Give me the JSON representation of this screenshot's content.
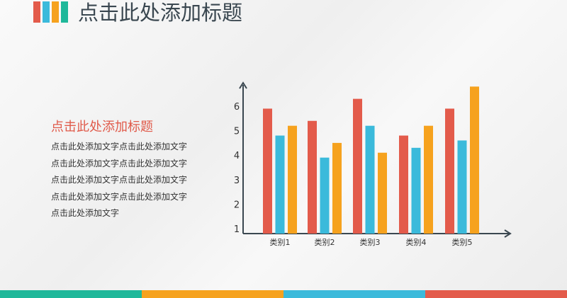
{
  "header": {
    "title": "点击此处添加标题",
    "logo_colors": [
      "#e35b4b",
      "#3bbadb",
      "#f6a21e",
      "#1fb89a"
    ]
  },
  "text": {
    "subtitle": "点击此处添加标题",
    "lines": [
      "点击此处添加文字点击此处添加文字",
      "点击此处添加文字点击此处添加文字",
      "点击此处添加文字点击此处添加文字",
      "点击此处添加文字点击此处添加文字",
      "点击此处添加文字"
    ]
  },
  "footer_colors": [
    "#1fb89a",
    "#f6a21e",
    "#3bbadb",
    "#e35b4b"
  ],
  "chart_data": {
    "type": "bar",
    "categories": [
      "类别1",
      "类别2",
      "类别3",
      "类别4",
      "类别5"
    ],
    "series": [
      {
        "color": "#e35b4b",
        "values": [
          5.9,
          5.4,
          6.3,
          4.8,
          5.9
        ]
      },
      {
        "color": "#3bbadb",
        "values": [
          4.8,
          3.9,
          5.2,
          4.3,
          4.6
        ]
      },
      {
        "color": "#f6a21e",
        "values": [
          5.2,
          4.5,
          4.1,
          5.2,
          6.8
        ]
      }
    ],
    "yticks": [
      1,
      2,
      3,
      4,
      5,
      6
    ],
    "grid": false
  }
}
